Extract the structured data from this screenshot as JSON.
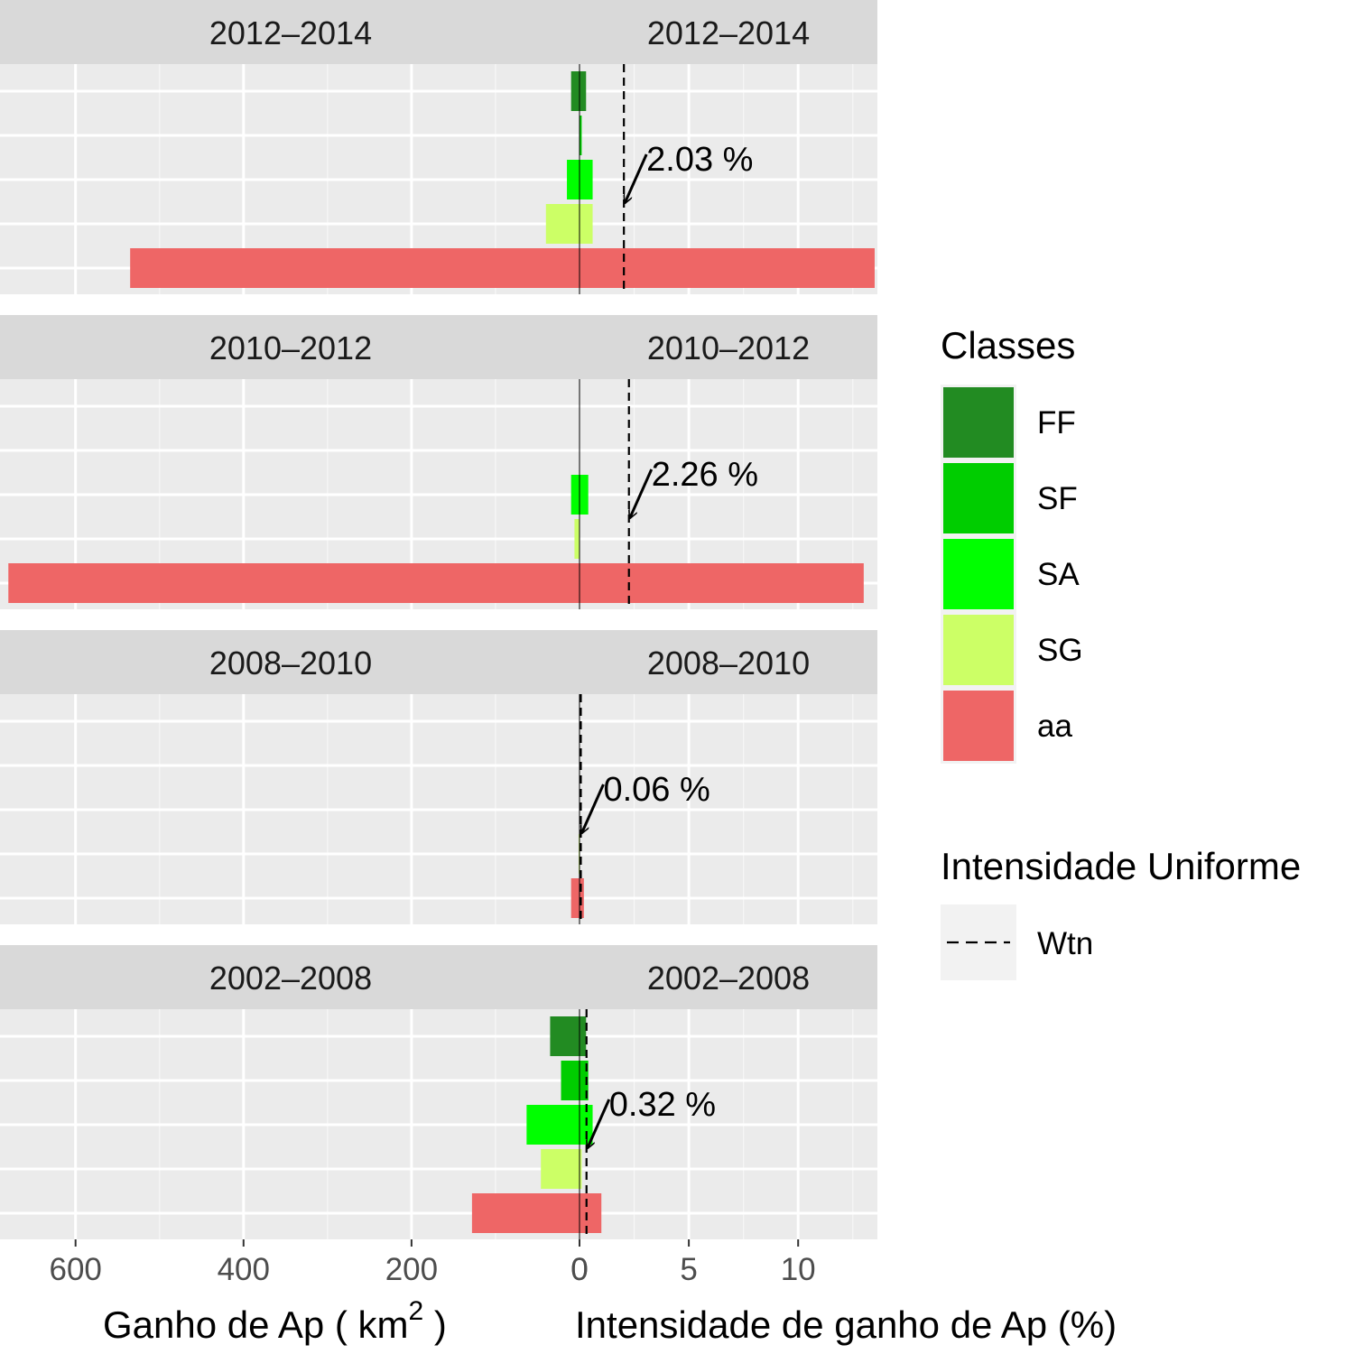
{
  "chart_data": {
    "type": "bar",
    "title": "",
    "panels": [
      "2012–2014",
      "2010–2012",
      "2008–2010",
      "2002–2008"
    ],
    "categories": [
      "FF",
      "SF",
      "SA",
      "SG",
      "aa"
    ],
    "left_axis": {
      "label_text": "Ganho de Ap ( km",
      "label_sup": "2",
      "label_close": " )",
      "ticks": [
        600,
        400,
        200,
        0
      ],
      "reversed": true,
      "xlim": [
        0,
        680
      ]
    },
    "right_axis": {
      "label": "Intensidade de ganho de Ap (%)",
      "ticks": [
        0,
        5,
        10
      ],
      "xlim": [
        0,
        13.5
      ]
    },
    "series": [
      {
        "name": "FF",
        "color": "#228B22",
        "gain_km2": [
          10,
          0,
          0,
          35
        ],
        "intensity_pct": [
          0.3,
          0,
          0,
          0.3
        ]
      },
      {
        "name": "SF",
        "color": "#00CD00",
        "gain_km2": [
          0,
          0,
          0,
          22
        ],
        "intensity_pct": [
          0.1,
          0,
          0,
          0.4
        ]
      },
      {
        "name": "SA",
        "color": "#00FF00",
        "gain_km2": [
          15,
          10,
          0,
          63
        ],
        "intensity_pct": [
          0.6,
          0.4,
          0,
          0.6
        ]
      },
      {
        "name": "SG",
        "color": "#CCFF66",
        "gain_km2": [
          40,
          6,
          1,
          46
        ],
        "intensity_pct": [
          0.6,
          0,
          0,
          0.1
        ]
      },
      {
        "name": "aa",
        "color": "#EE6666",
        "gain_km2": [
          535,
          680,
          10,
          128
        ],
        "intensity_pct": [
          13.5,
          13,
          0.2,
          1.0
        ]
      }
    ],
    "uniform_intensity": {
      "name": "Wtn",
      "values": [
        2.03,
        2.26,
        0.06,
        0.32
      ],
      "labels": [
        "2.03 %",
        "2.26 %",
        "0.06 %",
        "0.32 %"
      ]
    },
    "legend": {
      "position": "right",
      "classes_title": "Classes",
      "line_title": "Intensidade Uniforme",
      "line_label": "Wtn"
    }
  }
}
